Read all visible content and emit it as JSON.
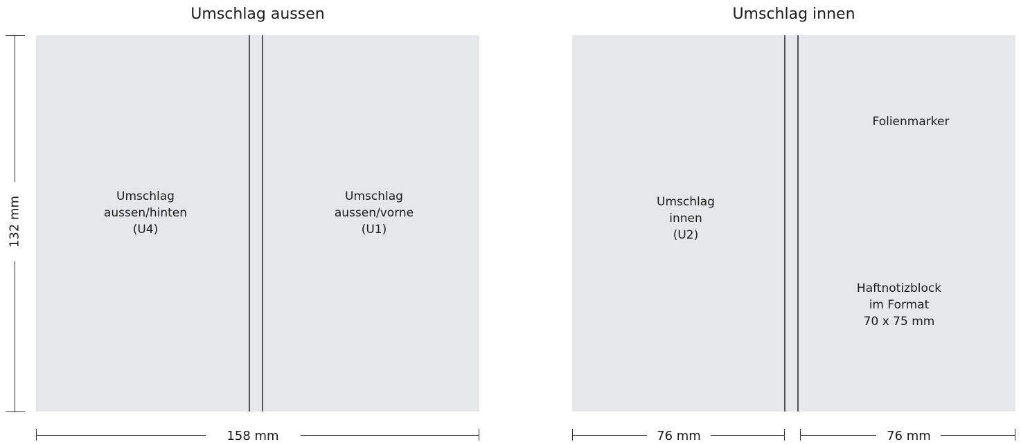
{
  "outside": {
    "title": "Umschlag aussen",
    "back": [
      "Umschlag",
      "aussen/hinten",
      "(U4)"
    ],
    "front": [
      "Umschlag",
      "aussen/vorne",
      "(U1)"
    ],
    "width_dimension": "158 mm",
    "height_dimension": "132 mm"
  },
  "inside": {
    "title": "Umschlag innen",
    "left": [
      "Umschlag",
      "innen",
      "(U2)"
    ],
    "marker": "Folienmarker",
    "notepad": [
      "Haftnotizblock",
      "im Format",
      "70 x 75 mm"
    ],
    "left_width_dimension": "76 mm",
    "right_width_dimension": "76 mm"
  }
}
